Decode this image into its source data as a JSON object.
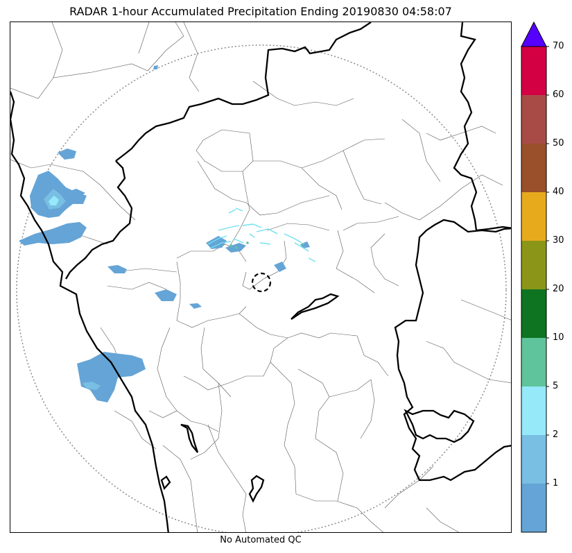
{
  "title": "RADAR 1-hour Accumulated Precipitation Ending 20190830 04:58:07",
  "footer": {
    "qc_note": "No Automated QC"
  },
  "colorbar": {
    "levels": [
      {
        "label": "1",
        "color": "#65a4d6"
      },
      {
        "label": "2",
        "color": "#78bfe3"
      },
      {
        "label": "5",
        "color": "#95e9f9"
      },
      {
        "label": "10",
        "color": "#5fc49b"
      },
      {
        "label": "20",
        "color": "#0f7421"
      },
      {
        "label": "30",
        "color": "#8b9618"
      },
      {
        "label": "40",
        "color": "#e8aa1d"
      },
      {
        "label": "50",
        "color": "#99502b"
      },
      {
        "label": "60",
        "color": "#a84b46"
      },
      {
        "label": "70",
        "color": "#d30044"
      }
    ],
    "extend_color": "#5600ff"
  },
  "map": {
    "range_ring_color": "#8a8a8a",
    "boundary_color": "#000000",
    "district_color": "#555555"
  }
}
